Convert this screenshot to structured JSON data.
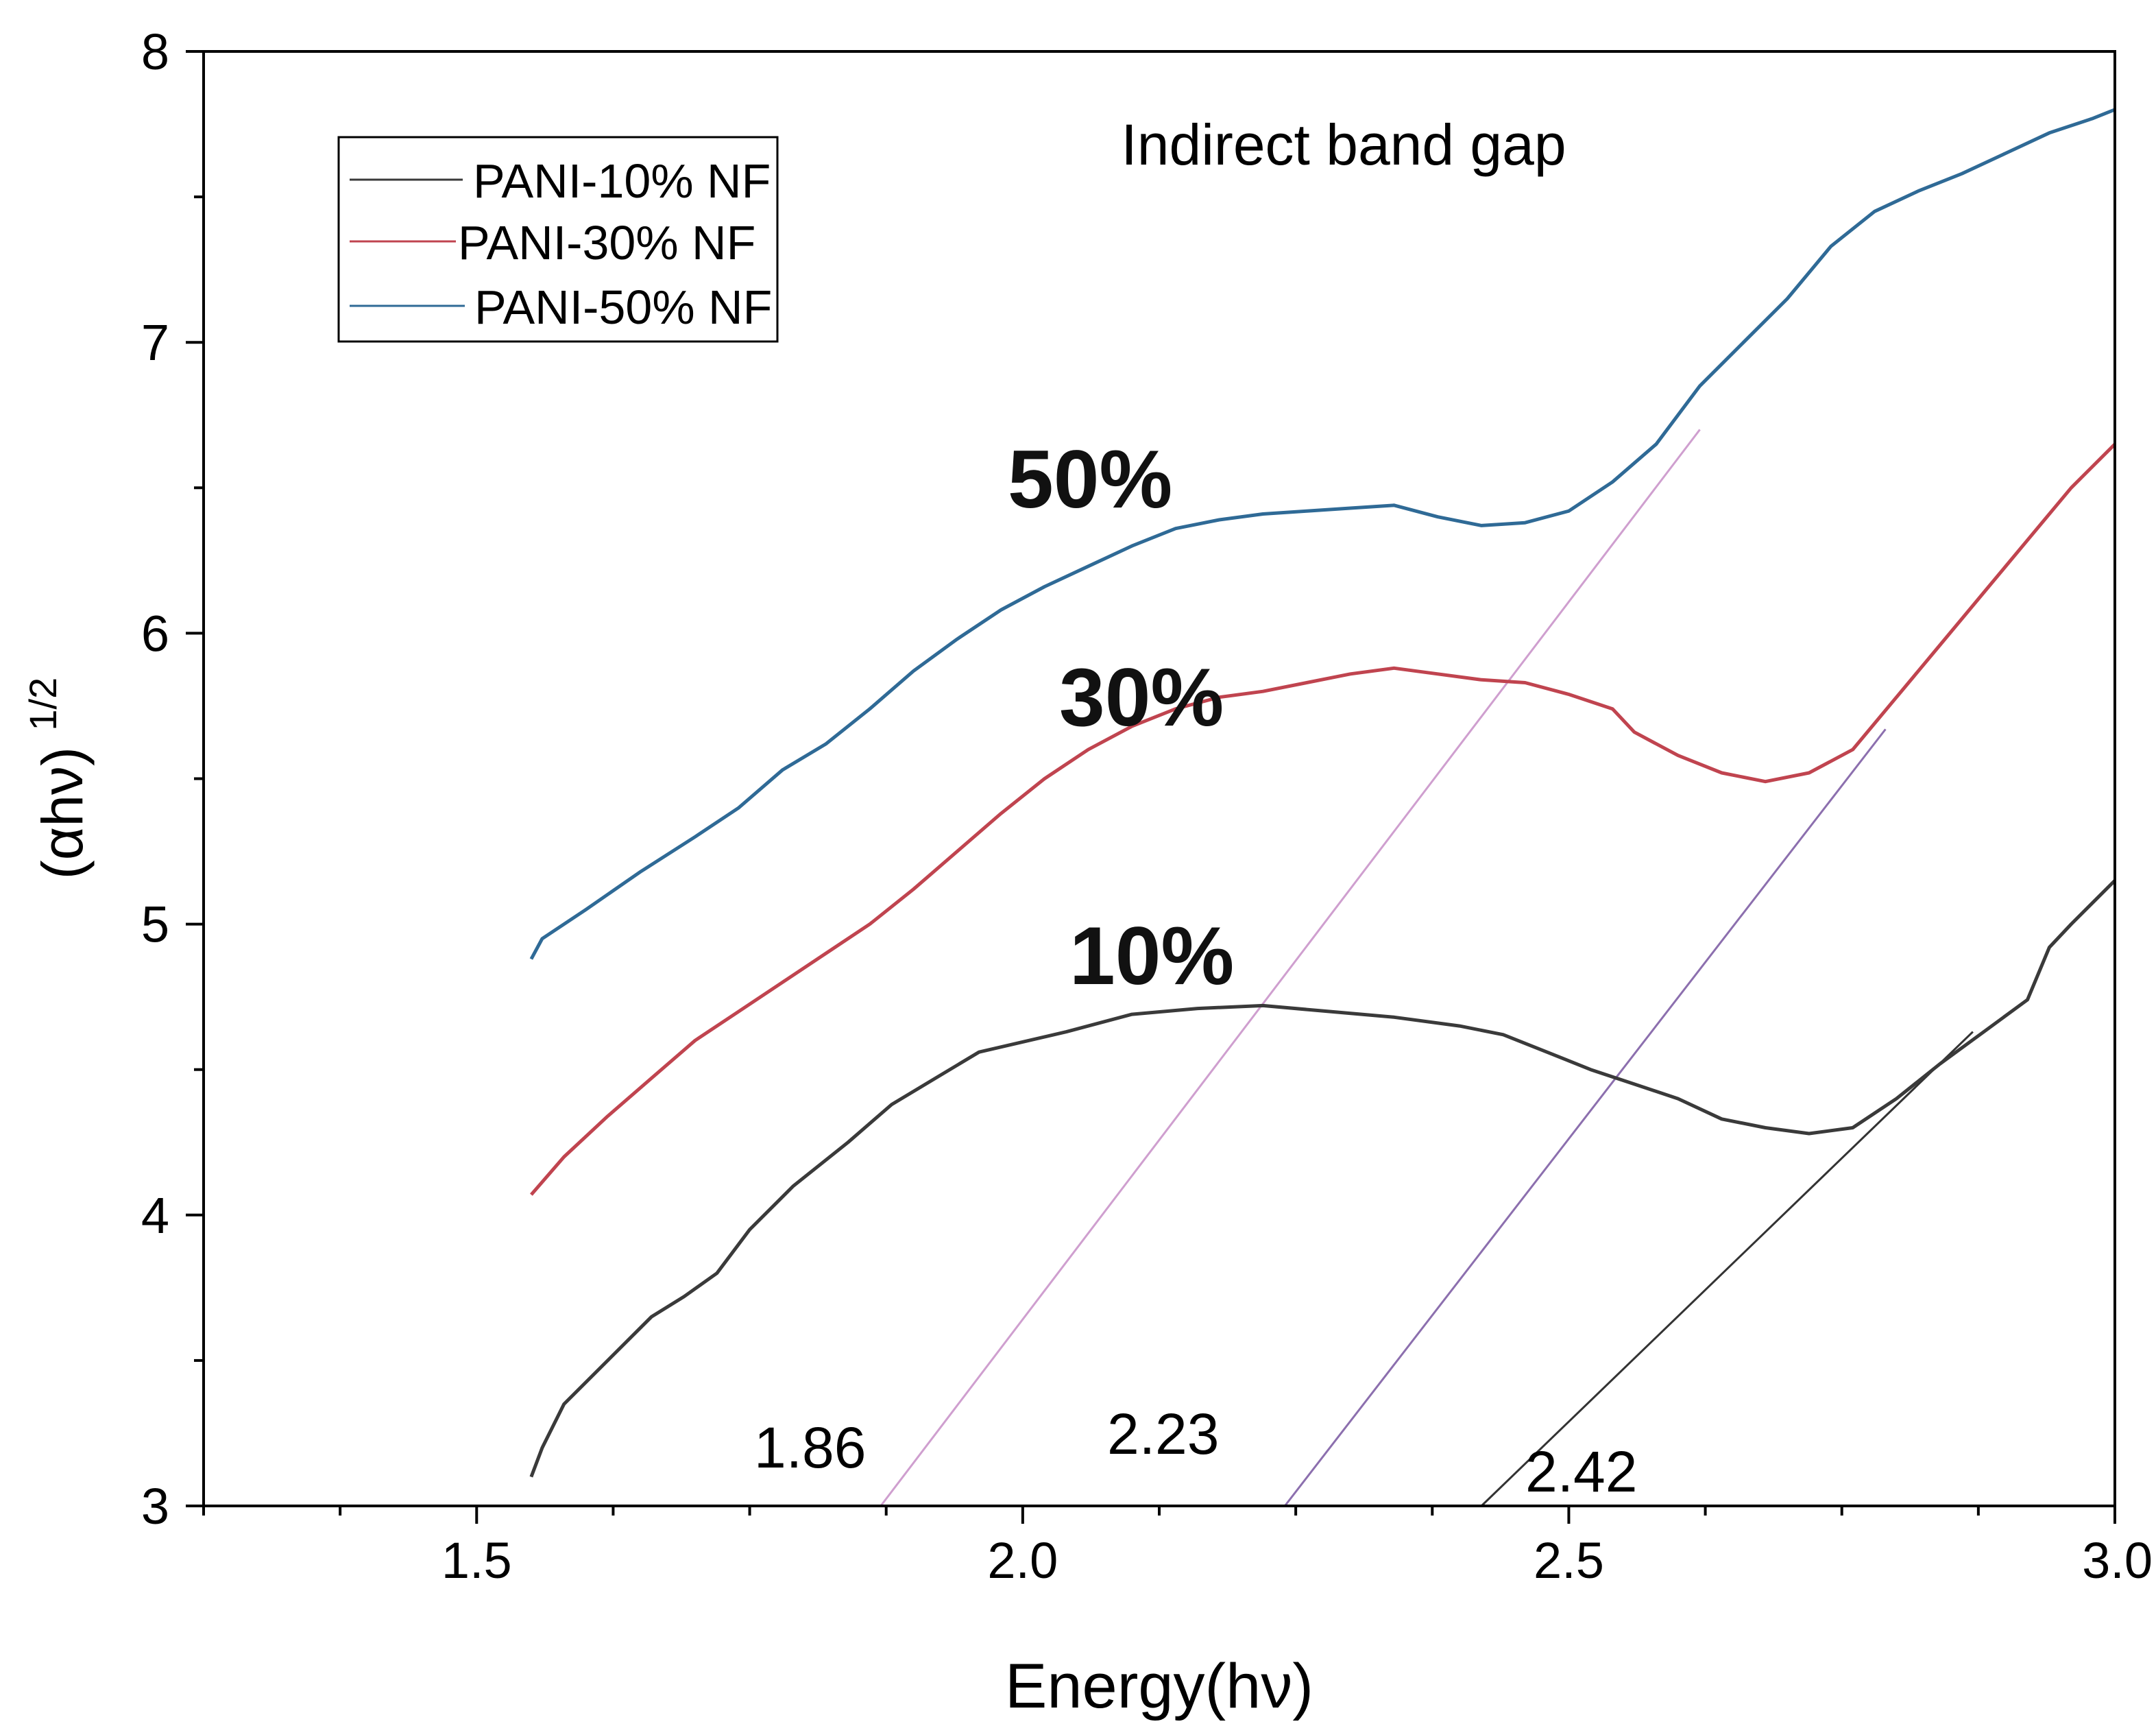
{
  "chart_data": {
    "type": "line",
    "title": "Indirect band gap",
    "xlabel": "Energy(hν)",
    "ylabel": "(αhν)",
    "ylabel_superscript": "1/2",
    "xlim": [
      1.25,
      3.0
    ],
    "ylim": [
      3,
      8
    ],
    "x_ticks": [
      1.5,
      2.0,
      2.5,
      3.0
    ],
    "x_tick_labels": [
      "1.5",
      "2.0",
      "2.5",
      "3.0"
    ],
    "y_ticks": [
      3,
      4,
      5,
      6,
      7,
      8
    ],
    "y_tick_labels": [
      "3",
      "4",
      "5",
      "6",
      "7",
      "8"
    ],
    "legend": {
      "position": "top-left",
      "entries": [
        "PANI-10% NF",
        "PANI-30% NF",
        "PANI-50% NF"
      ]
    },
    "colors": {
      "PANI-10% NF": "#3a3a3a",
      "PANI-30% NF": "#c0444f",
      "PANI-50% NF": "#2f6a96",
      "tangent_10": "#333333",
      "tangent_30": "#8c6fae",
      "tangent_50": "#cf9fcf"
    },
    "series": [
      {
        "name": "PANI-10% NF",
        "curve_label": "10%",
        "x": [
          1.55,
          1.56,
          1.58,
          1.62,
          1.66,
          1.69,
          1.72,
          1.75,
          1.79,
          1.84,
          1.88,
          1.92,
          1.96,
          2.04,
          2.1,
          2.16,
          2.22,
          2.28,
          2.34,
          2.4,
          2.44,
          2.48,
          2.52,
          2.56,
          2.6,
          2.64,
          2.68,
          2.72,
          2.76,
          2.8,
          2.84,
          2.88,
          2.92,
          2.94,
          2.96,
          3.0
        ],
        "y": [
          3.1,
          3.2,
          3.35,
          3.5,
          3.65,
          3.72,
          3.8,
          3.95,
          4.1,
          4.25,
          4.38,
          4.47,
          4.56,
          4.63,
          4.69,
          4.71,
          4.72,
          4.7,
          4.68,
          4.65,
          4.62,
          4.56,
          4.5,
          4.45,
          4.4,
          4.33,
          4.3,
          4.28,
          4.3,
          4.4,
          4.52,
          4.63,
          4.74,
          4.92,
          5.0,
          5.15
        ]
      },
      {
        "name": "PANI-30% NF",
        "curve_label": "30%",
        "x": [
          1.55,
          1.58,
          1.62,
          1.66,
          1.7,
          1.74,
          1.78,
          1.82,
          1.86,
          1.9,
          1.94,
          1.98,
          2.02,
          2.06,
          2.1,
          2.14,
          2.18,
          2.22,
          2.26,
          2.3,
          2.34,
          2.38,
          2.42,
          2.46,
          2.5,
          2.54,
          2.56,
          2.6,
          2.64,
          2.68,
          2.72,
          2.76,
          2.8,
          2.84,
          2.88,
          2.92,
          2.96,
          3.0
        ],
        "y": [
          4.07,
          4.2,
          4.34,
          4.47,
          4.6,
          4.7,
          4.8,
          4.9,
          5.0,
          5.12,
          5.25,
          5.38,
          5.5,
          5.6,
          5.68,
          5.74,
          5.78,
          5.8,
          5.83,
          5.86,
          5.88,
          5.86,
          5.84,
          5.83,
          5.79,
          5.74,
          5.66,
          5.58,
          5.52,
          5.49,
          5.52,
          5.6,
          5.78,
          5.96,
          6.14,
          6.32,
          6.5,
          6.65
        ]
      },
      {
        "name": "PANI-50% NF",
        "curve_label": "50%",
        "x": [
          1.55,
          1.56,
          1.6,
          1.65,
          1.7,
          1.74,
          1.78,
          1.82,
          1.86,
          1.9,
          1.94,
          1.98,
          2.02,
          2.06,
          2.1,
          2.14,
          2.18,
          2.22,
          2.26,
          2.3,
          2.34,
          2.38,
          2.42,
          2.46,
          2.5,
          2.54,
          2.58,
          2.62,
          2.66,
          2.7,
          2.74,
          2.78,
          2.82,
          2.86,
          2.9,
          2.94,
          2.98,
          3.0
        ],
        "y": [
          4.88,
          4.95,
          5.05,
          5.18,
          5.3,
          5.4,
          5.53,
          5.62,
          5.74,
          5.87,
          5.98,
          6.08,
          6.16,
          6.23,
          6.3,
          6.36,
          6.39,
          6.41,
          6.42,
          6.43,
          6.44,
          6.4,
          6.37,
          6.38,
          6.42,
          6.52,
          6.65,
          6.85,
          7.0,
          7.15,
          7.33,
          7.45,
          7.52,
          7.58,
          7.65,
          7.72,
          7.77,
          7.8
        ]
      }
    ],
    "tangent_lines": [
      {
        "series": "PANI-50% NF",
        "label": "1.86",
        "x": [
          1.87,
          2.62
        ],
        "y": [
          3.0,
          6.7
        ]
      },
      {
        "series": "PANI-30% NF",
        "label": "2.23",
        "x": [
          2.24,
          2.79
        ],
        "y": [
          3.0,
          5.67
        ]
      },
      {
        "series": "PANI-10% NF",
        "label": "2.42",
        "x": [
          2.42,
          2.87
        ],
        "y": [
          3.0,
          4.63
        ]
      }
    ]
  }
}
